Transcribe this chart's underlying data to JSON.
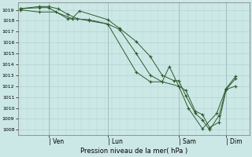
{
  "background_color": "#cce8e6",
  "grid_color": "#aacccc",
  "line_color": "#2d5a2d",
  "marker_color": "#2d5a2d",
  "ylabel_ticks": [
    1008,
    1009,
    1010,
    1011,
    1012,
    1013,
    1014,
    1015,
    1016,
    1017,
    1018,
    1019
  ],
  "ylim": [
    1007.5,
    1019.7
  ],
  "xlabel": "Pression niveau de la mer( hPa )",
  "xtick_labels": [
    "| Ven",
    "| Lun",
    "| Sam",
    "| Dim"
  ],
  "xtick_positions": [
    0.12,
    0.37,
    0.67,
    0.87
  ],
  "series1_x": [
    0.0,
    0.08,
    0.15,
    0.22,
    0.25,
    0.37,
    0.42,
    0.49,
    0.55,
    0.6,
    0.65,
    0.67,
    0.7,
    0.74,
    0.77,
    0.8,
    0.84,
    0.87,
    0.91
  ],
  "series1_y": [
    1019.0,
    1018.8,
    1018.8,
    1018.2,
    1018.9,
    1018.1,
    1017.3,
    1016.1,
    1014.7,
    1013.0,
    1012.5,
    1012.5,
    1011.1,
    1009.5,
    1008.9,
    1008.0,
    1009.3,
    1011.7,
    1012.0
  ],
  "series2_x": [
    0.0,
    0.08,
    0.12,
    0.16,
    0.2,
    0.24,
    0.29,
    0.37,
    0.42,
    0.49,
    0.55,
    0.6,
    0.63,
    0.67,
    0.7,
    0.74,
    0.77,
    0.8,
    0.84,
    0.87,
    0.91
  ],
  "series2_y": [
    1019.1,
    1019.3,
    1019.3,
    1019.1,
    1018.6,
    1018.2,
    1018.0,
    1017.7,
    1017.2,
    1015.0,
    1013.0,
    1012.4,
    1013.8,
    1012.0,
    1011.6,
    1009.7,
    1009.4,
    1008.2,
    1008.7,
    1011.7,
    1012.7
  ],
  "series3_x": [
    0.0,
    0.08,
    0.12,
    0.2,
    0.29,
    0.37,
    0.49,
    0.55,
    0.6,
    0.67,
    0.71,
    0.77,
    0.83,
    0.87,
    0.91
  ],
  "series3_y": [
    1019.1,
    1019.2,
    1019.2,
    1018.2,
    1018.1,
    1017.7,
    1013.3,
    1012.4,
    1012.4,
    1012.0,
    1010.0,
    1008.1,
    1009.5,
    1011.8,
    1012.9
  ],
  "vline_positions": [
    0.12,
    0.37,
    0.67,
    0.87
  ],
  "figsize": [
    3.2,
    2.0
  ],
  "dpi": 100
}
